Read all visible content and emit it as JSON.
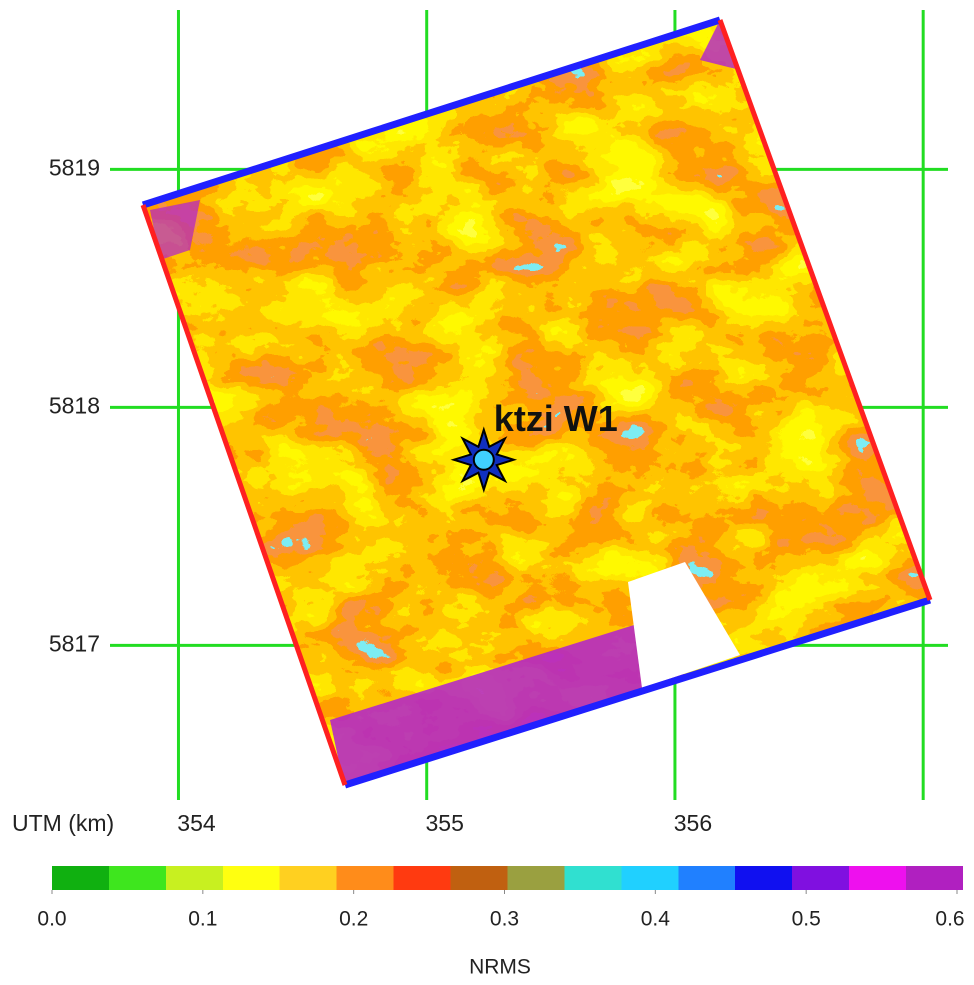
{
  "map": {
    "x_label": "UTM (km)",
    "xlim": [
      353.7,
      357.1
    ],
    "ylim": [
      5816.35,
      5819.67
    ],
    "xticks": [
      354,
      355,
      356,
      {
        "value": 357,
        "label": null
      }
    ],
    "yticks": [
      5817,
      5818,
      5819
    ],
    "grid_color": "#22dd22",
    "well": {
      "label": "ktzi W1",
      "x": 355.23,
      "y": 5817.78
    }
  },
  "colorbar": {
    "label": "NRMS",
    "clim": [
      0,
      0.6
    ],
    "ticks": [
      {
        "value": 0,
        "label": "0.0"
      },
      0.1,
      0.2,
      0.3,
      0.4,
      0.5,
      0.6
    ],
    "colors": [
      "#10b010",
      "#3ee61e",
      "#c8f020",
      "#ffff10",
      "#ffd020",
      "#ff8c1a",
      "#ff3a10",
      "#c06010",
      "#9aa040",
      "#30e0d0",
      "#20d0ff",
      "#2080ff",
      "#1010f0",
      "#8010e0",
      "#ee10ee",
      "#b020c0"
    ]
  }
}
